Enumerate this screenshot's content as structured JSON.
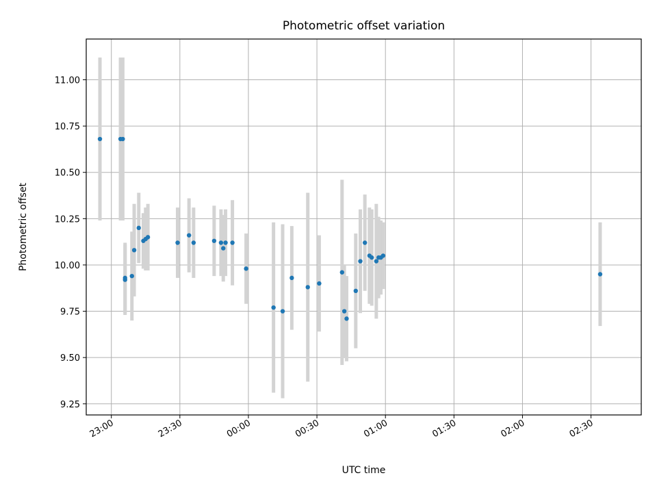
{
  "chart_data": {
    "type": "scatter",
    "title": "Photometric offset variation",
    "xlabel": "UTC time",
    "ylabel": "Photometric offset",
    "x_axis": {
      "kind": "time",
      "range": [
        "22:49",
        "02:52"
      ],
      "ticks": [
        "23:00",
        "23:30",
        "00:00",
        "00:30",
        "01:00",
        "01:30",
        "02:00",
        "02:30"
      ],
      "tick_rotation_deg": 30
    },
    "y_axis": {
      "range": [
        9.19,
        11.22
      ],
      "ticks": [
        "9.25",
        "9.50",
        "9.75",
        "10.00",
        "10.25",
        "10.50",
        "10.75",
        "11.00"
      ]
    },
    "grid": true,
    "marker_color": "#1f77b4",
    "errorbar_color": "#d3d3d3",
    "series": [
      {
        "points": [
          {
            "x": "22:55",
            "y": 10.68,
            "err": 0.44
          },
          {
            "x": "23:04",
            "y": 10.68,
            "err": 0.44
          },
          {
            "x": "23:05",
            "y": 10.68,
            "err": 0.44
          },
          {
            "x": "23:06",
            "y": 9.93,
            "err": 0.19
          },
          {
            "x": "23:06",
            "y": 9.92,
            "err": 0.19
          },
          {
            "x": "23:09",
            "y": 9.94,
            "err": 0.24
          },
          {
            "x": "23:10",
            "y": 10.08,
            "err": 0.25
          },
          {
            "x": "23:12",
            "y": 10.2,
            "err": 0.19
          },
          {
            "x": "23:14",
            "y": 10.13,
            "err": 0.15
          },
          {
            "x": "23:15",
            "y": 10.14,
            "err": 0.17
          },
          {
            "x": "23:16",
            "y": 10.15,
            "err": 0.18
          },
          {
            "x": "23:29",
            "y": 10.12,
            "err": 0.19
          },
          {
            "x": "23:34",
            "y": 10.16,
            "err": 0.2
          },
          {
            "x": "23:36",
            "y": 10.12,
            "err": 0.19
          },
          {
            "x": "23:45",
            "y": 10.13,
            "err": 0.19
          },
          {
            "x": "23:48",
            "y": 10.12,
            "err": 0.18
          },
          {
            "x": "23:49",
            "y": 10.09,
            "err": 0.18
          },
          {
            "x": "23:50",
            "y": 10.12,
            "err": 0.18
          },
          {
            "x": "23:53",
            "y": 10.12,
            "err": 0.23
          },
          {
            "x": "23:59",
            "y": 9.98,
            "err": 0.19
          },
          {
            "x": "00:11",
            "y": 9.77,
            "err": 0.46
          },
          {
            "x": "00:15",
            "y": 9.75,
            "err": 0.47
          },
          {
            "x": "00:19",
            "y": 9.93,
            "err": 0.28
          },
          {
            "x": "00:26",
            "y": 9.88,
            "err": 0.51
          },
          {
            "x": "00:31",
            "y": 9.9,
            "err": 0.26
          },
          {
            "x": "00:41",
            "y": 9.96,
            "err": 0.5
          },
          {
            "x": "00:42",
            "y": 9.75,
            "err": 0.25
          },
          {
            "x": "00:43",
            "y": 9.71,
            "err": 0.23
          },
          {
            "x": "00:47",
            "y": 9.86,
            "err": 0.31
          },
          {
            "x": "00:49",
            "y": 10.02,
            "err": 0.28
          },
          {
            "x": "00:51",
            "y": 10.12,
            "err": 0.26
          },
          {
            "x": "00:53",
            "y": 10.05,
            "err": 0.26
          },
          {
            "x": "00:54",
            "y": 10.04,
            "err": 0.26
          },
          {
            "x": "00:56",
            "y": 10.02,
            "err": 0.31
          },
          {
            "x": "00:57",
            "y": 10.04,
            "err": 0.22
          },
          {
            "x": "00:58",
            "y": 10.04,
            "err": 0.2
          },
          {
            "x": "00:59",
            "y": 10.05,
            "err": 0.18
          },
          {
            "x": "02:34",
            "y": 9.95,
            "err": 0.28
          }
        ]
      }
    ]
  }
}
